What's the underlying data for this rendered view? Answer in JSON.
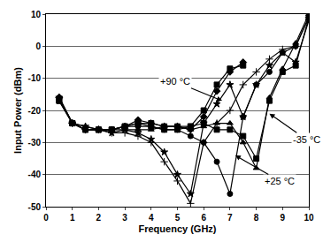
{
  "chart_data": {
    "type": "line",
    "x_label": "Frequency (GHz)",
    "y_label": "Input Power (dBm)",
    "x": [
      0.5,
      1,
      1.5,
      2,
      2.5,
      3,
      3.5,
      4,
      4.5,
      5,
      5.5,
      6,
      6.5,
      7,
      7.5,
      8,
      8.5,
      9,
      9.5,
      10
    ],
    "series": [
      {
        "color": "#000000",
        "marker": "diamond",
        "values": [
          -16,
          -24,
          -26,
          -26,
          -26,
          -25,
          -23,
          -24,
          -25,
          -25,
          -26,
          -22,
          -14,
          -8,
          -5,
          null,
          null,
          null,
          null,
          null
        ]
      },
      {
        "color": "#000000",
        "marker": "square",
        "values": [
          -17,
          -24,
          -26,
          -26,
          -26,
          -25,
          -24,
          -25,
          -26,
          -26,
          -25,
          -20,
          -12,
          -7,
          -6,
          null,
          null,
          null,
          null,
          null
        ]
      },
      {
        "color": "#000000",
        "marker": "cross-thin",
        "values": [
          -16,
          -24,
          -26,
          -26,
          -27,
          -27,
          -28,
          -30,
          -36,
          -42,
          -49,
          -30,
          -24,
          -20,
          -12,
          -8,
          -4,
          -1,
          0,
          9
        ]
      },
      {
        "color": "#000000",
        "marker": "star",
        "values": [
          -16,
          -24,
          -25,
          -26,
          -27,
          -26,
          -27,
          -29,
          -33,
          -40,
          -46,
          -24,
          -18,
          -12,
          -22,
          -12,
          -6,
          -2,
          -5,
          8
        ]
      },
      {
        "color": "#000000",
        "marker": "circle",
        "values": [
          -16,
          -24,
          -26,
          -26,
          -26,
          -25,
          -25,
          -25,
          -26,
          -26,
          -28,
          -30,
          -36,
          -46,
          -22,
          -12,
          -8,
          -2,
          0,
          9
        ]
      },
      {
        "color": "#000000",
        "marker": "triangle-up",
        "values": [
          -16,
          -24,
          -25,
          -26,
          -26,
          -26,
          -26,
          -26,
          -25,
          -25,
          -26,
          -25,
          -24,
          -24,
          -30,
          -38,
          -16,
          -7,
          1,
          10
        ]
      },
      {
        "color": "#000000",
        "marker": "square",
        "values": [
          -17,
          -24,
          -26,
          -26,
          -26,
          -25,
          -24,
          -24,
          -25,
          -25,
          -25,
          -24,
          -26,
          -26,
          -28,
          -35,
          -17,
          -8,
          -6,
          9
        ]
      }
    ],
    "xlim": [
      0,
      10
    ],
    "xticks": [
      0,
      1,
      2,
      3,
      4,
      5,
      6,
      7,
      8,
      9,
      10
    ],
    "ylim": [
      -50,
      10
    ],
    "yticks": [
      -50,
      -40,
      -30,
      -20,
      -10,
      0,
      10
    ],
    "grid": true,
    "annotations": [
      {
        "text": "+90 °C",
        "x": 6.7,
        "y": -17,
        "text_x": 4.9,
        "text_y": -11
      },
      {
        "text": "-35 °C",
        "x": 8.5,
        "y": -21,
        "text_x": 9.9,
        "text_y": -29
      },
      {
        "text": "+25 °C",
        "x": 7.2,
        "y": -34,
        "text_x": 8.9,
        "text_y": -42
      }
    ]
  }
}
